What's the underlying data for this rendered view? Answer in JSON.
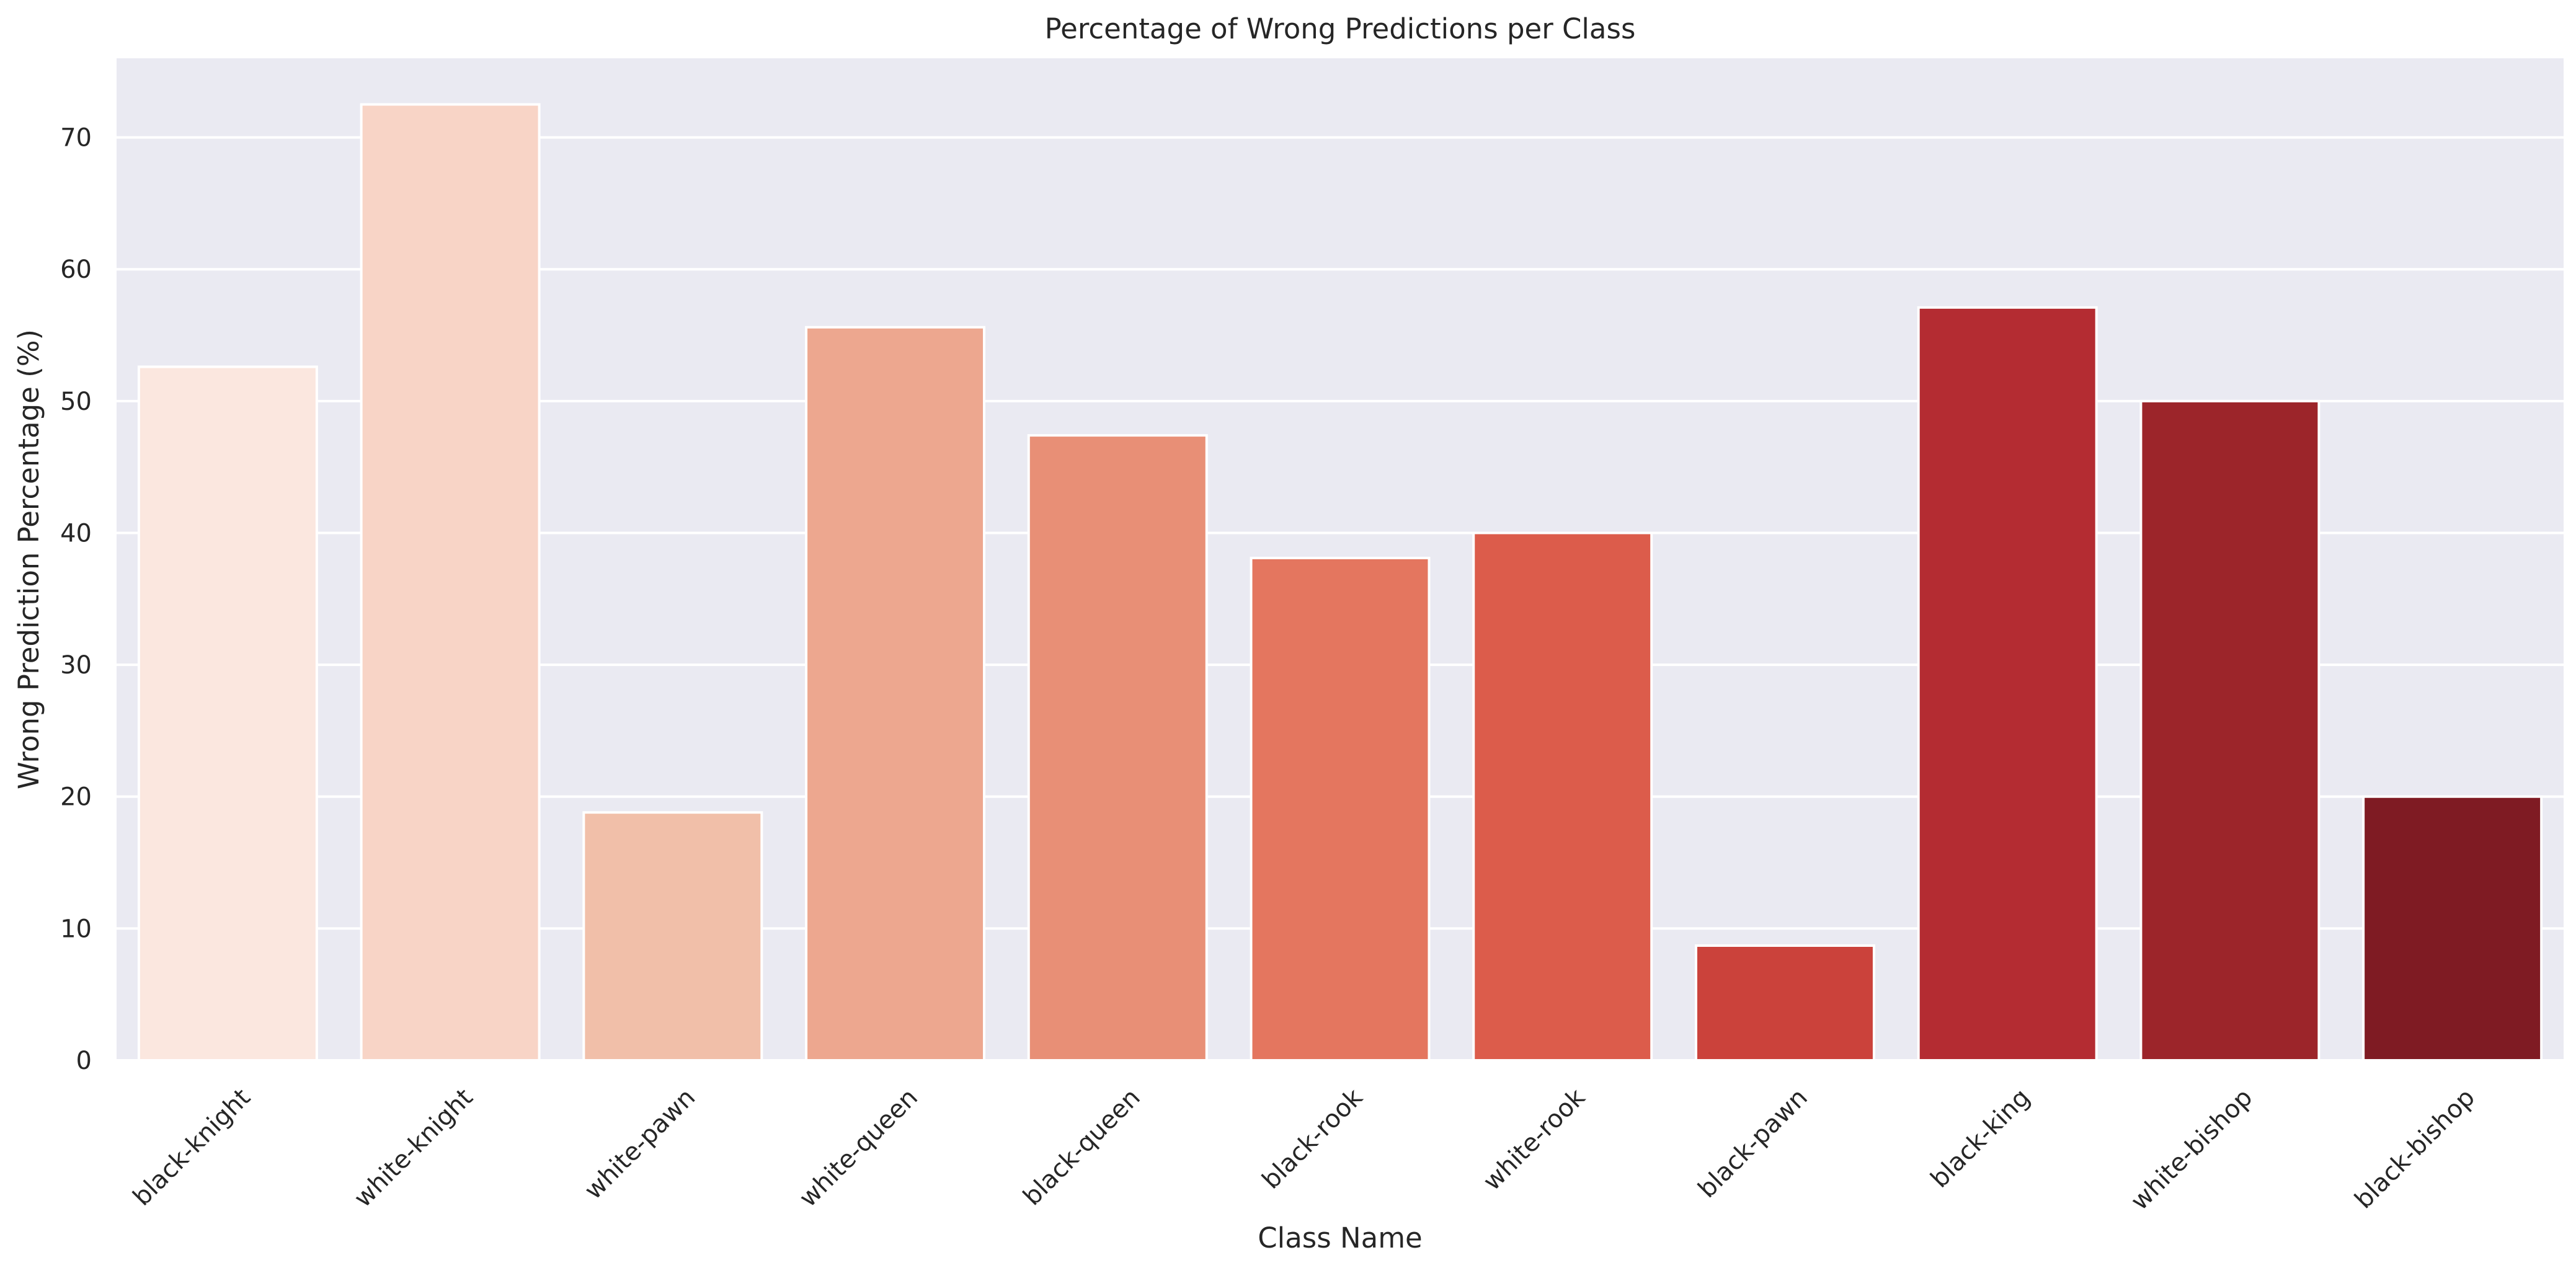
{
  "chart_data": {
    "type": "bar",
    "title": "Percentage of Wrong Predictions per Class",
    "xlabel": "Class Name",
    "ylabel": "Wrong Prediction Percentage (%)",
    "categories": [
      "black-knight",
      "white-knight",
      "white-pawn",
      "white-queen",
      "black-queen",
      "black-rook",
      "white-rook",
      "black-pawn",
      "black-king",
      "white-bishop",
      "black-bishop"
    ],
    "values": [
      52.6,
      72.5,
      18.8,
      55.6,
      47.4,
      38.1,
      40.0,
      8.7,
      57.1,
      50.0,
      20.0
    ],
    "ylim": [
      0,
      76
    ],
    "yticks": [
      0,
      10,
      20,
      30,
      40,
      50,
      60,
      70
    ],
    "grid": true,
    "colors": {
      "background": "#eaeaf2",
      "grid": "#ffffff",
      "bars": [
        "#fbe7df",
        "#f8d4c6",
        "#f1bfa9",
        "#eda78f",
        "#e88f76",
        "#e4765f",
        "#dc5c4b",
        "#cb423b",
        "#b42c32",
        "#9c252a",
        "#7f1b23"
      ]
    }
  }
}
